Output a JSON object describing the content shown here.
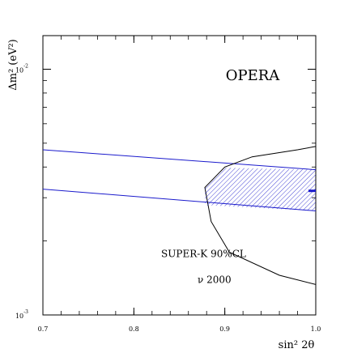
{
  "chart_data": {
    "type": "area",
    "title": "OPERA",
    "title_color": "#cc0000",
    "xlabel": "sin² 2θ",
    "ylabel": "Δm² (eV²)",
    "xlim": [
      0.7,
      1.0
    ],
    "ylim": [
      0.001,
      0.0137
    ],
    "yscale": "log",
    "grid": false,
    "x_ticks": [
      {
        "value": 0.7,
        "label": "0.7"
      },
      {
        "value": 0.8,
        "label": "0.8"
      },
      {
        "value": 0.9,
        "label": "0.9"
      },
      {
        "value": 1.0,
        "label": "1.0"
      }
    ],
    "y_ticks": [
      {
        "value": 0.001,
        "base": "10",
        "exp": "-3"
      },
      {
        "value": 0.01,
        "base": "10",
        "exp": "-2"
      }
    ],
    "series": [
      {
        "role": "opera-upper-line",
        "color": "#1a1acc",
        "points": [
          [
            0.7,
            0.0047
          ],
          [
            1.0,
            0.0039
          ]
        ]
      },
      {
        "role": "opera-lower-line",
        "color": "#1a1acc",
        "points": [
          [
            0.7,
            0.00325
          ],
          [
            1.0,
            0.00265
          ]
        ]
      },
      {
        "role": "superk-contour",
        "color": "#000000",
        "points": [
          [
            1.0,
            0.00485
          ],
          [
            0.98,
            0.0047
          ],
          [
            0.93,
            0.0044
          ],
          [
            0.9,
            0.004
          ],
          [
            0.878,
            0.0033
          ],
          [
            0.885,
            0.0024
          ],
          [
            0.905,
            0.0018
          ],
          [
            0.96,
            0.00145
          ],
          [
            1.0,
            0.00133
          ]
        ]
      },
      {
        "role": "overlap-hatched-region",
        "color": "#1a1acc",
        "points": [
          [
            0.9005,
            0.00397
          ],
          [
            1.0,
            0.0039
          ],
          [
            1.0,
            0.00265
          ],
          [
            0.878,
            0.0028
          ],
          [
            0.878,
            0.0033
          ]
        ]
      },
      {
        "role": "best-fit-marker",
        "color": "#1a1acc",
        "points": [
          [
            0.992,
            0.0032
          ],
          [
            1.0,
            0.0032
          ]
        ]
      }
    ],
    "annotations": [
      {
        "role": "superk-label",
        "text": "SUPER-K 90%CL",
        "x": 0.83,
        "y": 0.00172
      },
      {
        "role": "nu-label",
        "text": "ν 2000",
        "x": 0.87,
        "y": 0.00135
      }
    ]
  }
}
